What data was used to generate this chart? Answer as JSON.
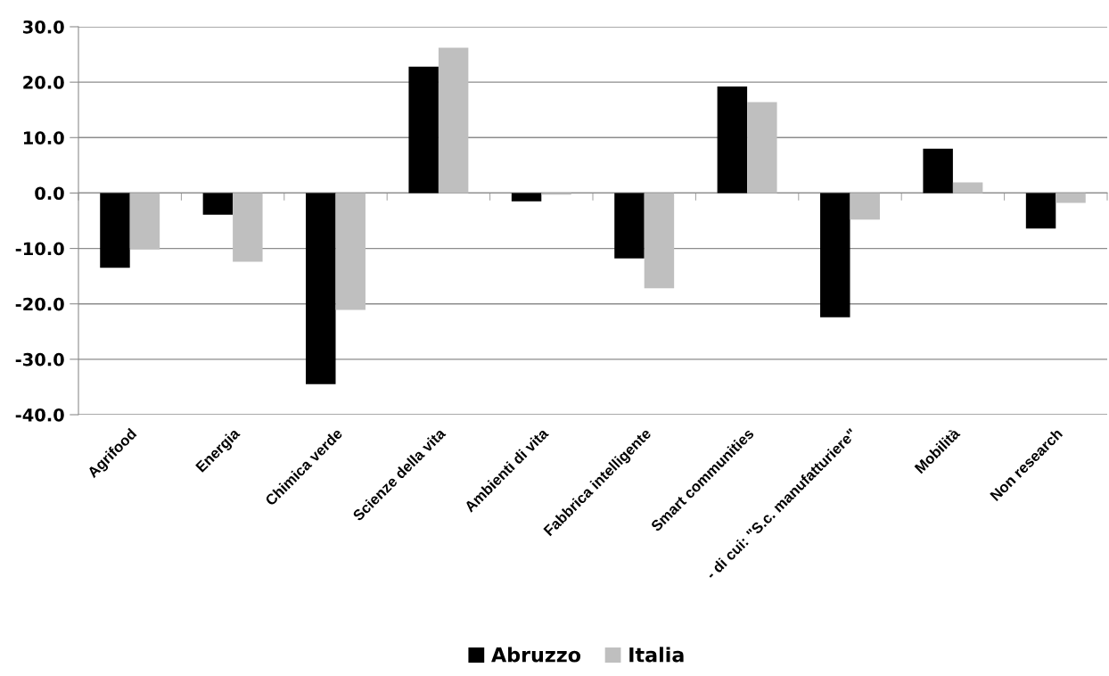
{
  "chart_data": {
    "type": "bar",
    "categories": [
      "Agrifood",
      "Energia",
      "Chimica verde",
      "Scienze della vita",
      "Ambienti di vita",
      "Fabbrica intelligente",
      "Smart communities",
      "- di cui: \"S.c. manufatturiere\"",
      "Mobilità",
      "Non research"
    ],
    "series": [
      {
        "name": "Abruzzo",
        "color": "#000000",
        "values": [
          -13.5,
          -3.9,
          -34.5,
          22.8,
          -1.5,
          -11.8,
          19.2,
          -22.4,
          8.0,
          -6.4
        ]
      },
      {
        "name": "Italia",
        "color": "#bfbfbf",
        "values": [
          -10.2,
          -12.4,
          -21.1,
          26.2,
          -0.3,
          -17.2,
          16.4,
          -4.8,
          1.9,
          -1.8
        ]
      }
    ],
    "ylim": [
      -40,
      30
    ],
    "yticks": [
      {
        "value": -40,
        "label": "-40.0"
      },
      {
        "value": -30,
        "label": "-30.0"
      },
      {
        "value": -20,
        "label": "-20.0"
      },
      {
        "value": -10,
        "label": "-10.0"
      },
      {
        "value": 0,
        "label": "0.0"
      },
      {
        "value": 10,
        "label": "10.0"
      },
      {
        "value": 20,
        "label": "20.0"
      },
      {
        "value": 30,
        "label": "30.0"
      }
    ],
    "grid": "y",
    "legend": "bottom"
  }
}
